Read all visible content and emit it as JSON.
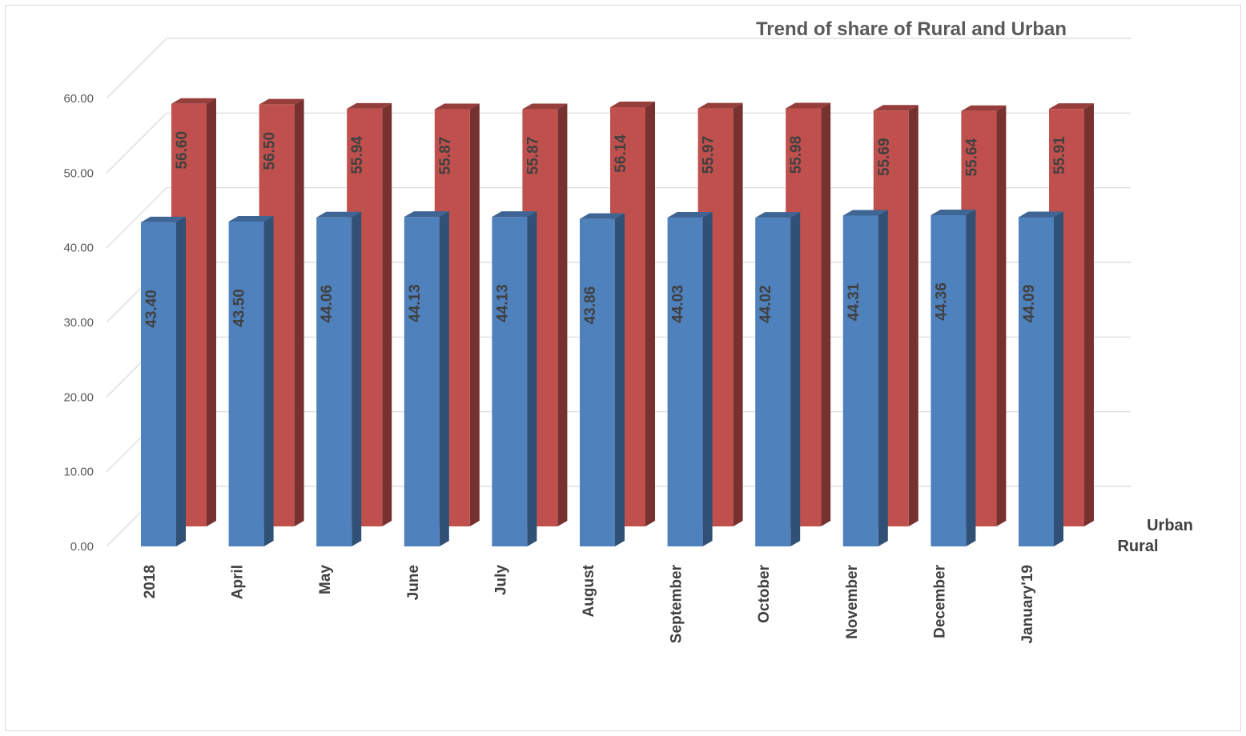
{
  "chart_data": {
    "type": "bar",
    "title": "Trend of  share of Rural and Urban",
    "categories": [
      "2018",
      "April",
      "May",
      "June",
      "July",
      "August",
      "September",
      "October",
      "November",
      "December",
      "January'19"
    ],
    "series": [
      {
        "name": "Rural",
        "color": "#4F81BD",
        "values": [
          43.4,
          43.5,
          44.06,
          44.13,
          44.13,
          43.86,
          44.03,
          44.02,
          44.31,
          44.36,
          44.09
        ],
        "labels": [
          "43.40",
          "43.50",
          "44.06",
          "44.13",
          "44.13",
          "43.86",
          "44.03",
          "44.02",
          "44.31",
          "44.36",
          "44.09"
        ]
      },
      {
        "name": "Urban",
        "color": "#C0504D",
        "values": [
          56.6,
          56.5,
          55.94,
          55.87,
          55.87,
          56.14,
          55.97,
          55.98,
          55.69,
          55.64,
          55.91
        ],
        "labels": [
          "56.60",
          "56.50",
          "55.94",
          "55.87",
          "55.87",
          "56.14",
          "55.97",
          "55.98",
          "55.69",
          "55.64",
          "55.91"
        ]
      }
    ],
    "y_ticks": [
      "0.00",
      "10.00",
      "20.00",
      "30.00",
      "40.00",
      "50.00",
      "60.00"
    ],
    "ylim": [
      0,
      60
    ],
    "grid": true,
    "style": "3d-column"
  }
}
